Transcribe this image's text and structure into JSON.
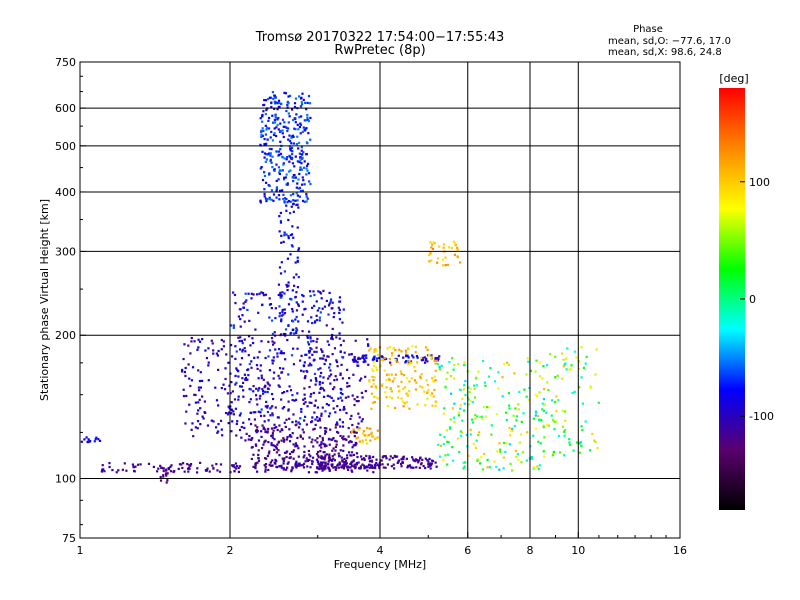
{
  "chart_data": {
    "type": "scatter",
    "title": "Tromsø 20170322 17:54:00−17:55:43",
    "subtitle": "RwPretec (8p)",
    "xlabel": "Frequency [MHz]",
    "ylabel": "Stationary phase Virtual Height [km]",
    "x_scale": "log",
    "y_scale": "log",
    "xlim": [
      1,
      16
    ],
    "ylim": [
      75,
      750
    ],
    "x_ticks": [
      1,
      2,
      4,
      6,
      8,
      10,
      16
    ],
    "y_ticks": [
      75,
      100,
      200,
      300,
      400,
      500,
      600,
      750
    ],
    "x_grid": [
      2,
      4,
      6,
      8,
      10
    ],
    "y_grid": [
      100,
      200,
      300,
      400,
      500,
      600
    ],
    "grid": true,
    "phase_info": {
      "heading": "Phase",
      "line_o": "mean, sd,O: −77.6, 17.0",
      "line_x": "mean, sd,X:  98.6, 24.8"
    },
    "colorbar": {
      "label": "[deg]",
      "range": [
        -180,
        180
      ],
      "ticks": [
        100,
        0,
        -100
      ],
      "colormap": [
        "#000000",
        "#5a006e",
        "#0000ff",
        "#00ffff",
        "#00ff00",
        "#ffff00",
        "#ff8800",
        "#ff0000"
      ]
    },
    "series": [
      {
        "x_range": [
          1.1,
          4.0
        ],
        "y_range": [
          103,
          108
        ],
        "phase_range": [
          -125,
          -100
        ],
        "count": 160
      },
      {
        "x_range": [
          1.45,
          1.5
        ],
        "y_range": [
          98,
          106
        ],
        "phase_range": [
          -130,
          -110
        ],
        "count": 12
      },
      {
        "x_range": [
          2.3,
          2.9
        ],
        "y_range": [
          380,
          650
        ],
        "phase_range": [
          -90,
          -50
        ],
        "count": 340
      },
      {
        "x_range": [
          2.5,
          2.75
        ],
        "y_range": [
          200,
          390
        ],
        "phase_range": [
          -100,
          -60
        ],
        "count": 90
      },
      {
        "x_range": [
          2.0,
          3.4
        ],
        "y_range": [
          130,
          250
        ],
        "phase_range": [
          -115,
          -60
        ],
        "count": 320
      },
      {
        "x_range": [
          1.6,
          2.6
        ],
        "y_range": [
          120,
          200
        ],
        "phase_range": [
          -120,
          -80
        ],
        "count": 220
      },
      {
        "x_range": [
          2.2,
          3.6
        ],
        "y_range": [
          105,
          130
        ],
        "phase_range": [
          -130,
          -100
        ],
        "count": 280
      },
      {
        "x_range": [
          3.0,
          5.2
        ],
        "y_range": [
          105,
          112
        ],
        "phase_range": [
          -130,
          -100
        ],
        "count": 160
      },
      {
        "x_range": [
          2.8,
          3.8
        ],
        "y_range": [
          130,
          200
        ],
        "phase_range": [
          -120,
          -90
        ],
        "count": 120
      },
      {
        "x_range": [
          3.5,
          5.3
        ],
        "y_range": [
          175,
          182
        ],
        "phase_range": [
          -110,
          -70
        ],
        "count": 70
      },
      {
        "x_range": [
          3.8,
          5.2
        ],
        "y_range": [
          140,
          190
        ],
        "phase_range": [
          80,
          125
        ],
        "count": 150
      },
      {
        "x_range": [
          3.5,
          4.0
        ],
        "y_range": [
          118,
          128
        ],
        "phase_range": [
          80,
          130
        ],
        "count": 30
      },
      {
        "x_range": [
          5.0,
          5.8
        ],
        "y_range": [
          280,
          315
        ],
        "phase_range": [
          85,
          130
        ],
        "count": 35
      },
      {
        "x_range": [
          5.2,
          8.6
        ],
        "y_range": [
          104,
          180
        ],
        "phase_range": [
          -40,
          110
        ],
        "count": 220
      },
      {
        "x_range": [
          8.5,
          11.0
        ],
        "y_range": [
          110,
          190
        ],
        "phase_range": [
          -30,
          110
        ],
        "count": 90
      },
      {
        "x_range": [
          1.0,
          1.1
        ],
        "y_range": [
          118,
          123
        ],
        "phase_range": [
          -95,
          -70
        ],
        "count": 14
      }
    ]
  }
}
